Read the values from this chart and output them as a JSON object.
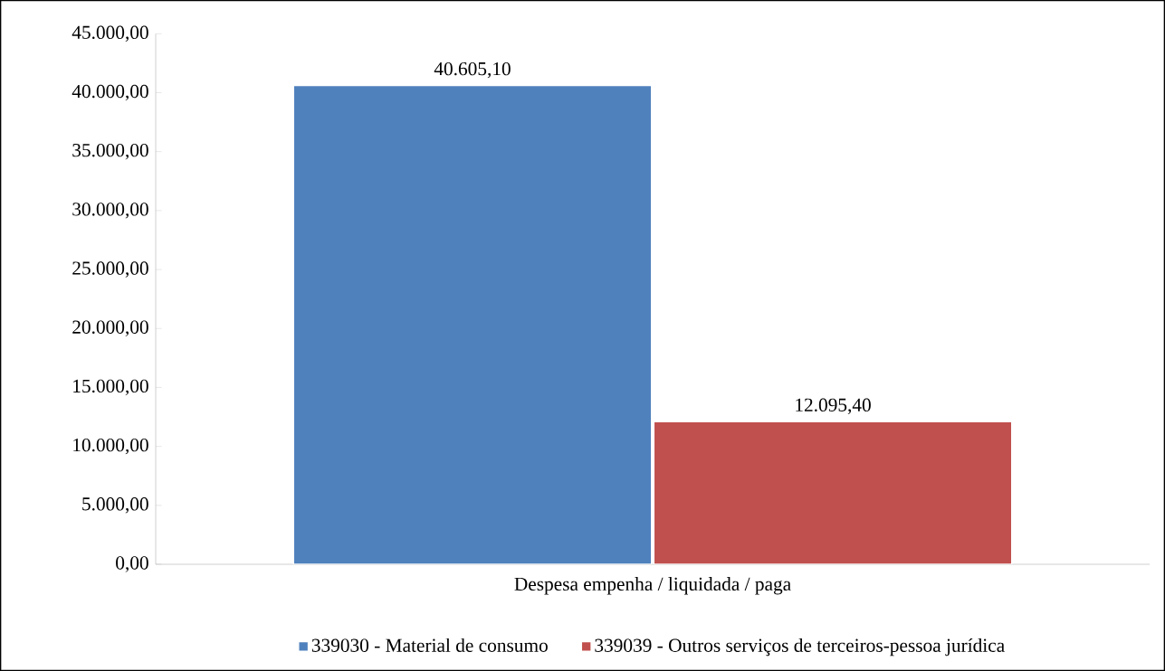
{
  "chart_data": {
    "type": "bar",
    "categories": [
      "Despesa empenha / liquidada / paga"
    ],
    "series": [
      {
        "name": "339030 - Material de consumo",
        "color": "#4f81bd",
        "values": [
          40605.1
        ],
        "value_labels": [
          "40.605,10"
        ]
      },
      {
        "name": "339039 - Outros serviços de terceiros-pessoa jurídica",
        "color": "#c0504d",
        "values": [
          12095.4
        ],
        "value_labels": [
          "12.095,40"
        ]
      }
    ],
    "ylim": [
      0,
      45000
    ],
    "yticks": [
      {
        "value": 0,
        "label": "0,00"
      },
      {
        "value": 5000,
        "label": "5.000,00"
      },
      {
        "value": 10000,
        "label": "10.000,00"
      },
      {
        "value": 15000,
        "label": "15.000,00"
      },
      {
        "value": 20000,
        "label": "20.000,00"
      },
      {
        "value": 25000,
        "label": "25.000,00"
      },
      {
        "value": 30000,
        "label": "30.000,00"
      },
      {
        "value": 35000,
        "label": "35.000,00"
      },
      {
        "value": 40000,
        "label": "40.000,00"
      },
      {
        "value": 45000,
        "label": "45.000,00"
      }
    ],
    "grid": false,
    "legend": "bottom"
  }
}
